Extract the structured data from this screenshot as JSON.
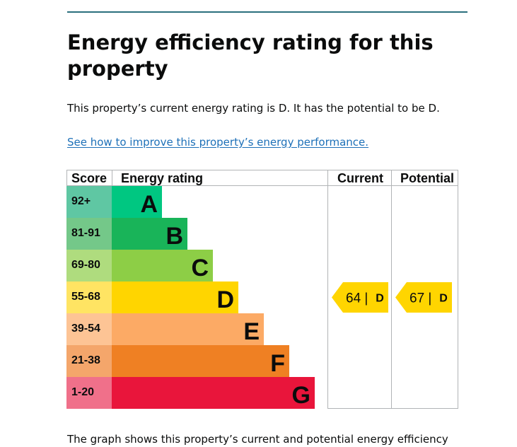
{
  "heading": "Energy efficiency rating for this property",
  "intro": "This property’s current energy rating is D. It has the potential to be D.",
  "improve_link": "See how to improve this property’s energy performance.",
  "footer_text": "The graph shows this property’s current and potential energy efficiency",
  "chart_data": {
    "type": "bar",
    "title": "",
    "headers": {
      "score": "Score",
      "rating": "Energy rating",
      "current": "Current",
      "potential": "Potential"
    },
    "bands": [
      {
        "letter": "A",
        "score": "92+",
        "color": "#00c781",
        "score_color": "#5fc7a3"
      },
      {
        "letter": "B",
        "score": "81-91",
        "color": "#19b459",
        "score_color": "#74c889"
      },
      {
        "letter": "C",
        "score": "69-80",
        "color": "#8dce46",
        "score_color": "#afdc7e"
      },
      {
        "letter": "D",
        "score": "55-68",
        "color": "#ffd500",
        "score_color": "#ffe463"
      },
      {
        "letter": "E",
        "score": "39-54",
        "color": "#fcaa65",
        "score_color": "#fdc495"
      },
      {
        "letter": "F",
        "score": "21-38",
        "color": "#ef8023",
        "score_color": "#f4a66b"
      },
      {
        "letter": "G",
        "score": "1-20",
        "color": "#e9153b",
        "score_color": "#f0708a"
      }
    ],
    "current": {
      "value": 64,
      "letter": "D",
      "separator": "|",
      "color": "#ffd500"
    },
    "potential": {
      "value": 67,
      "letter": "D",
      "separator": "|",
      "color": "#ffd500"
    }
  }
}
